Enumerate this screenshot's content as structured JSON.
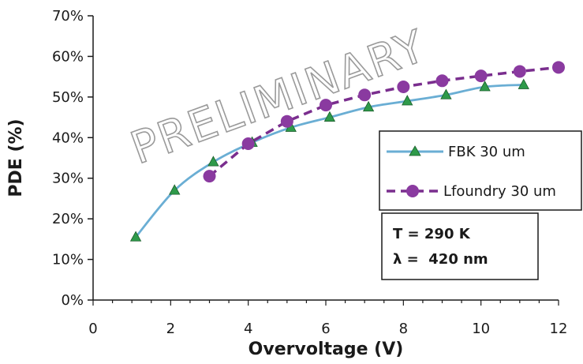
{
  "chart_data": {
    "type": "line",
    "xlabel": "Overvoltage (V)",
    "ylabel": "PDE (%)",
    "xlim": [
      0,
      12
    ],
    "ylim": [
      0,
      70
    ],
    "x_ticks": [
      "0",
      "2",
      "4",
      "6",
      "8",
      "10",
      "12"
    ],
    "y_ticks": [
      "0%",
      "10%",
      "20%",
      "30%",
      "40%",
      "50%",
      "60%",
      "70%"
    ],
    "grid": false,
    "legend_position": "right",
    "watermark": "PRELIMINARY",
    "series": [
      {
        "name": "FBK 30 um",
        "color": "#6aaed4",
        "marker": "triangle",
        "marker_color": "#2e9a4a",
        "line_style": "solid",
        "x": [
          1.1,
          2.1,
          3.1,
          4.1,
          5.1,
          6.1,
          7.1,
          8.1,
          9.1,
          10.1,
          11.1
        ],
        "y": [
          15.5,
          27,
          34,
          38.8,
          42.5,
          45,
          47.5,
          49,
          50.5,
          52.5,
          53
        ]
      },
      {
        "name": "Lfoundry 30 um",
        "color": "#7a2e8e",
        "marker": "circle",
        "marker_color": "#8a3aa0",
        "line_style": "dashed",
        "x": [
          3,
          4,
          5,
          6,
          7,
          8,
          9,
          10,
          11,
          12
        ],
        "y": [
          30.5,
          38.5,
          44,
          48,
          50.5,
          52.5,
          54,
          55.2,
          56.3,
          57.3
        ]
      }
    ],
    "annotations": [
      "T = 290 K",
      "λ =  420 nm"
    ]
  }
}
